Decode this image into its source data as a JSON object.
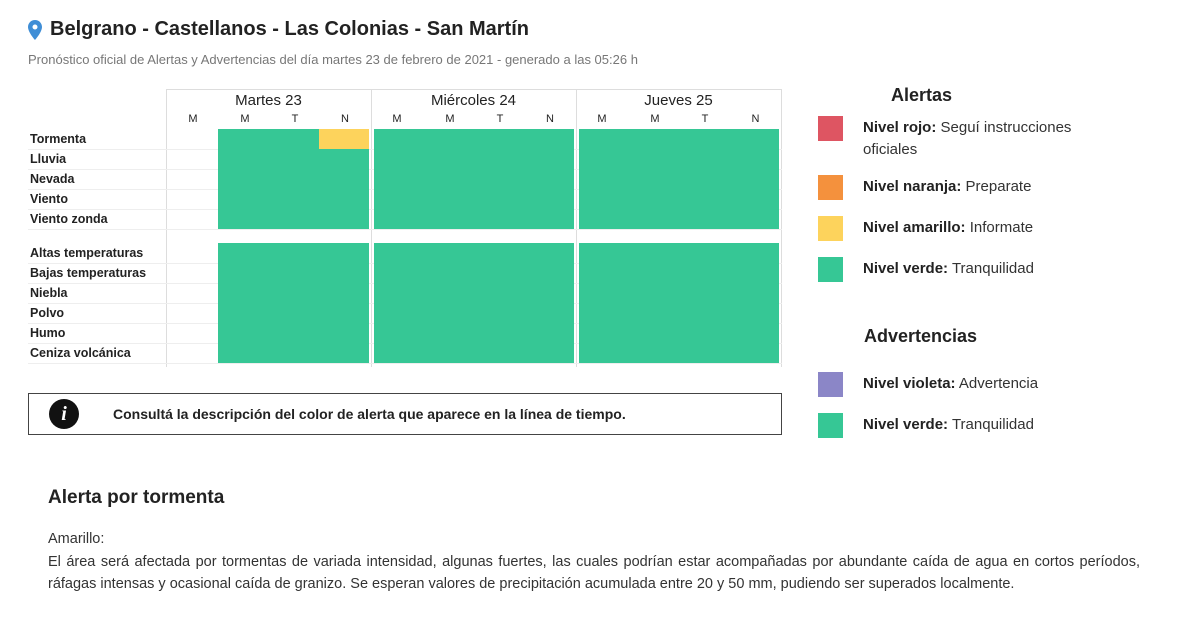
{
  "header": {
    "title": "Belgrano - Castellanos - Las Colonias - San Martín",
    "subtitle": "Pronóstico oficial de Alertas y Advertencias del día martes 23 de febrero de 2021 - generado a las 05:26 h",
    "pin_icon": "location-pin-icon",
    "pin_color": "#3f8ed6"
  },
  "grid": {
    "days": [
      {
        "label": "Martes 23",
        "slots": [
          "M",
          "M",
          "T",
          "N"
        ]
      },
      {
        "label": "Miércoles 24",
        "slots": [
          "M",
          "M",
          "T",
          "N"
        ]
      },
      {
        "label": "Jueves 25",
        "slots": [
          "M",
          "M",
          "T",
          "N"
        ]
      }
    ],
    "alert_rows": [
      {
        "label": "Tormenta",
        "levels": [
          "none",
          "verde",
          "amarillo",
          "verde",
          "verde",
          "verde",
          "verde",
          "verde",
          "verde",
          "verde",
          "verde",
          "verde"
        ]
      },
      {
        "label": "Lluvia",
        "levels": [
          "none",
          "verde",
          "verde",
          "verde",
          "verde",
          "verde",
          "verde",
          "verde",
          "verde",
          "verde",
          "verde",
          "verde"
        ]
      },
      {
        "label": "Nevada",
        "levels": [
          "none",
          "verde",
          "verde",
          "verde",
          "verde",
          "verde",
          "verde",
          "verde",
          "verde",
          "verde",
          "verde",
          "verde"
        ]
      },
      {
        "label": "Viento",
        "levels": [
          "none",
          "verde",
          "verde",
          "verde",
          "verde",
          "verde",
          "verde",
          "verde",
          "verde",
          "verde",
          "verde",
          "verde"
        ]
      },
      {
        "label": "Viento zonda",
        "levels": [
          "none",
          "verde",
          "verde",
          "verde",
          "verde",
          "verde",
          "verde",
          "verde",
          "verde",
          "verde",
          "verde",
          "verde"
        ]
      }
    ],
    "warning_rows": [
      {
        "label": "Altas temperaturas",
        "levels": [
          "none",
          "verde",
          "verde",
          "verde",
          "verde",
          "verde",
          "verde",
          "verde",
          "verde",
          "verde",
          "verde",
          "verde"
        ]
      },
      {
        "label": "Bajas temperaturas",
        "levels": [
          "none",
          "verde",
          "verde",
          "verde",
          "verde",
          "verde",
          "verde",
          "verde",
          "verde",
          "verde",
          "verde",
          "verde"
        ]
      },
      {
        "label": "Niebla",
        "levels": [
          "none",
          "verde",
          "verde",
          "verde",
          "verde",
          "verde",
          "verde",
          "verde",
          "verde",
          "verde",
          "verde",
          "verde"
        ]
      },
      {
        "label": "Polvo",
        "levels": [
          "none",
          "verde",
          "verde",
          "verde",
          "verde",
          "verde",
          "verde",
          "verde",
          "verde",
          "verde",
          "verde",
          "verde"
        ]
      },
      {
        "label": "Humo",
        "levels": [
          "none",
          "verde",
          "verde",
          "verde",
          "verde",
          "verde",
          "verde",
          "verde",
          "verde",
          "verde",
          "verde",
          "verde"
        ]
      },
      {
        "label": "Ceniza volcánica",
        "levels": [
          "none",
          "verde",
          "verde",
          "verde",
          "verde",
          "verde",
          "verde",
          "verde",
          "verde",
          "verde",
          "verde",
          "verde"
        ]
      }
    ]
  },
  "colors": {
    "rojo": "#de5562",
    "naranja": "#f4913d",
    "amarillo": "#fdd35c",
    "verde": "#36c795",
    "violeta": "#8b86c7"
  },
  "info_box": {
    "icon": "info-icon",
    "icon_glyph": "i",
    "text": "Consultá la descripción del color de alerta que aparece en la línea de tiempo."
  },
  "legend": {
    "alerts_title": "Alertas",
    "alerts": [
      {
        "level": "Nivel rojo:",
        "desc": "Seguí instrucciones oficiales",
        "color": "#de5562"
      },
      {
        "level": "Nivel naranja:",
        "desc": "Preparate",
        "color": "#f4913d"
      },
      {
        "level": "Nivel amarillo:",
        "desc": "Informate",
        "color": "#fdd35c"
      },
      {
        "level": "Nivel verde:",
        "desc": "Tranquilidad",
        "color": "#36c795"
      }
    ],
    "warnings_title": "Advertencias",
    "warnings": [
      {
        "level": "Nivel violeta:",
        "desc": "Advertencia",
        "color": "#8b86c7"
      },
      {
        "level": "Nivel verde:",
        "desc": "Tranquilidad",
        "color": "#36c795"
      }
    ]
  },
  "alert_detail": {
    "title": "Alerta por tormenta",
    "level": "Amarillo:",
    "description": "El área será afectada por tormentas de variada intensidad, algunas fuertes, las cuales podrían estar acompañadas por abundante caída de agua en cortos períodos, ráfagas intensas y ocasional caída de granizo. Se esperan valores de precipitación acumulada entre 20 y 50 mm, pudiendo ser superados localmente."
  }
}
